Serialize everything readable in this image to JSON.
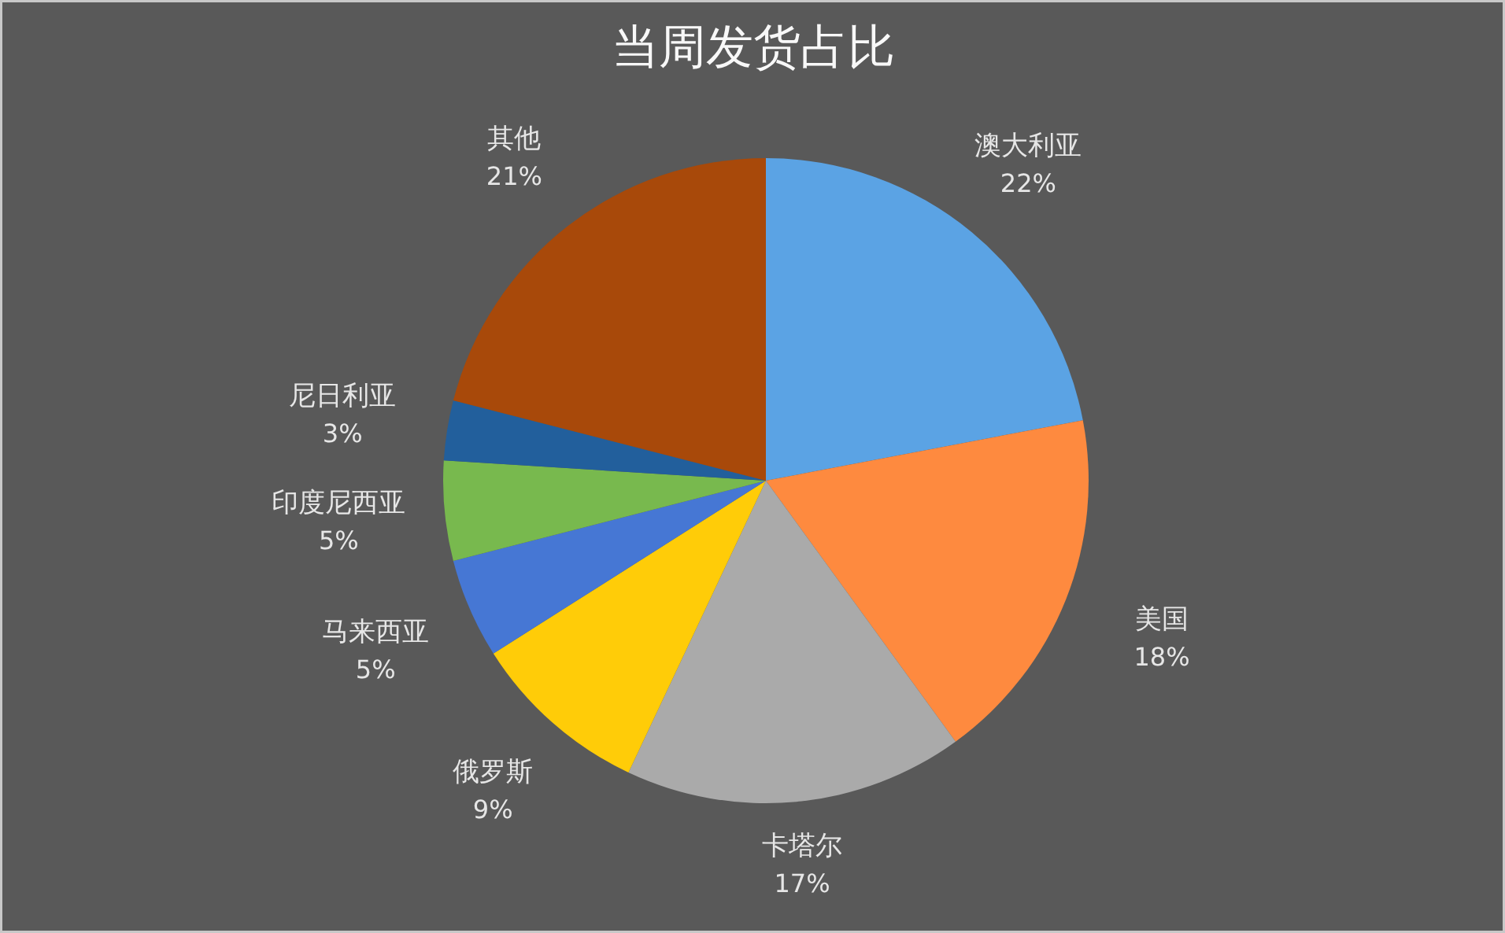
{
  "chart_data": {
    "type": "pie",
    "title": "当周发货占比",
    "categories": [
      "澳大利亚",
      "美国",
      "卡塔尔",
      "俄罗斯",
      "马来西亚",
      "印度尼西亚",
      "尼日利亚",
      "其他"
    ],
    "values": [
      22,
      18,
      17,
      9,
      5,
      5,
      3,
      21
    ],
    "colors": [
      "#5ba3e4",
      "#fe8a3f",
      "#aaaaaa",
      "#ffcc08",
      "#4677d4",
      "#78b94e",
      "#225f9c",
      "#a8490a"
    ],
    "value_labels": [
      "22%",
      "18%",
      "17%",
      "9%",
      "5%",
      "5%",
      "3%",
      "21%"
    ]
  }
}
